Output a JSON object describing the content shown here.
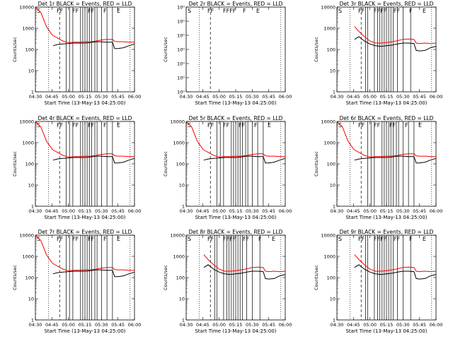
{
  "figure": {
    "xlabel": "Start Time (13-May-13 04:25:00)"
  },
  "ticks": {
    "x": [
      "04:30",
      "04:45",
      "05:00",
      "05:15",
      "05:30",
      "05:45",
      "06:00"
    ],
    "y_log": [
      "1",
      "10",
      "100",
      "1000",
      "10000"
    ],
    "y_det2": [
      "10⁰",
      "10⁰",
      "10⁰",
      "10⁰",
      "10⁰",
      "10⁰",
      "10⁰"
    ]
  },
  "colors": {
    "events": "#000000",
    "lld": "#ff0000",
    "axes": "#000000"
  },
  "chart_data": [
    {
      "type": "line",
      "title": "Det 1r BLACK = Events, RED = LLD",
      "ylabel": "Counts/sec",
      "yscale": "log",
      "ylim": [
        1,
        10000
      ],
      "xlim": [
        "04:30",
        "06:00"
      ],
      "x": [
        "04:30",
        "04:35",
        "04:40",
        "04:44",
        "04:46",
        "04:50",
        "04:55",
        "05:00",
        "05:05",
        "05:10",
        "05:15",
        "05:20",
        "05:25",
        "05:30",
        "05:35",
        "05:40",
        "05:42",
        "05:45",
        "05:50",
        "05:55",
        "06:00"
      ],
      "series": [
        {
          "name": "BLACK = Events",
          "color": "#000000",
          "values": [
            null,
            null,
            null,
            null,
            150,
            170,
            180,
            190,
            200,
            200,
            200,
            210,
            230,
            230,
            220,
            220,
            110,
            110,
            120,
            150,
            180
          ]
        },
        {
          "name": "RED = LLD",
          "color": "#ff0000",
          "values": [
            10000,
            5500,
            1200,
            600,
            450,
            350,
            250,
            210,
            220,
            220,
            230,
            230,
            250,
            280,
            300,
            300,
            240,
            230,
            230,
            220,
            220
          ]
        }
      ],
      "flags": [
        "S",
        "FF",
        "FF",
        "FF",
        "F",
        "E"
      ]
    },
    {
      "type": "line",
      "title": "Det 2r BLACK = Events, RED = LLD",
      "ylabel": "Counts/sec",
      "yscale": "linear",
      "ylim": [
        0,
        1
      ],
      "xlim": [
        "04:30",
        "06:00"
      ],
      "x": [],
      "series": [],
      "flags": [
        "S",
        "FF",
        "FFFF",
        "F",
        "E"
      ]
    },
    {
      "type": "line",
      "title": "Det 3r BLACK = Events, RED = LLD",
      "ylabel": "Counts/sec",
      "yscale": "log",
      "ylim": [
        1,
        10000
      ],
      "xlim": [
        "04:30",
        "06:00"
      ],
      "x": [
        "04:30",
        "04:35",
        "04:40",
        "04:44",
        "04:46",
        "04:50",
        "04:55",
        "05:00",
        "05:05",
        "05:10",
        "05:15",
        "05:20",
        "05:25",
        "05:30",
        "05:35",
        "05:40",
        "05:42",
        "05:45",
        "05:50",
        "05:55",
        "06:00"
      ],
      "series": [
        {
          "name": "BLACK = Events",
          "color": "#000000",
          "values": [
            null,
            null,
            null,
            null,
            300,
            400,
            250,
            180,
            150,
            140,
            150,
            160,
            180,
            200,
            200,
            190,
            90,
            85,
            90,
            120,
            140
          ]
        },
        {
          "name": "RED = LLD",
          "color": "#ff0000",
          "values": [
            null,
            null,
            null,
            null,
            1200,
            700,
            400,
            250,
            200,
            200,
            210,
            230,
            260,
            300,
            310,
            300,
            200,
            190,
            200,
            190,
            200
          ]
        }
      ],
      "flags": [
        "S",
        "FF",
        "FFFF",
        "FF",
        "F",
        "E"
      ]
    },
    {
      "type": "line",
      "title": "Det 4r BLACK = Events, RED = LLD",
      "ylabel": "Counts/sec",
      "yscale": "log",
      "ylim": [
        1,
        10000
      ],
      "xlim": [
        "04:30",
        "06:00"
      ],
      "x": [
        "04:30",
        "04:35",
        "04:40",
        "04:44",
        "04:46",
        "04:50",
        "04:55",
        "05:00",
        "05:05",
        "05:10",
        "05:15",
        "05:20",
        "05:25",
        "05:30",
        "05:35",
        "05:40",
        "05:42",
        "05:45",
        "05:50",
        "05:55",
        "06:00"
      ],
      "series": [
        {
          "name": "BLACK = Events",
          "color": "#000000",
          "values": [
            null,
            null,
            null,
            null,
            150,
            170,
            180,
            190,
            200,
            200,
            200,
            210,
            230,
            230,
            220,
            220,
            110,
            110,
            120,
            150,
            180
          ]
        },
        {
          "name": "RED = LLD",
          "color": "#ff0000",
          "values": [
            10000,
            5500,
            1200,
            600,
            450,
            350,
            250,
            210,
            220,
            220,
            230,
            230,
            250,
            280,
            300,
            300,
            240,
            230,
            230,
            220,
            220
          ]
        }
      ],
      "flags": [
        "S",
        "FF",
        "FF",
        "FF",
        "F",
        "E"
      ]
    },
    {
      "type": "line",
      "title": "Det 5r BLACK = Events, RED = LLD",
      "ylabel": "Counts/sec",
      "yscale": "log",
      "ylim": [
        1,
        10000
      ],
      "xlim": [
        "04:30",
        "06:00"
      ],
      "x": [
        "04:30",
        "04:35",
        "04:40",
        "04:44",
        "04:46",
        "04:50",
        "04:55",
        "05:00",
        "05:05",
        "05:10",
        "05:15",
        "05:20",
        "05:25",
        "05:30",
        "05:35",
        "05:40",
        "05:42",
        "05:45",
        "05:50",
        "05:55",
        "06:00"
      ],
      "series": [
        {
          "name": "BLACK = Events",
          "color": "#000000",
          "values": [
            null,
            null,
            null,
            null,
            150,
            170,
            180,
            190,
            200,
            200,
            200,
            210,
            230,
            230,
            220,
            220,
            110,
            110,
            120,
            150,
            180
          ]
        },
        {
          "name": "RED = LLD",
          "color": "#ff0000",
          "values": [
            10000,
            5500,
            1200,
            600,
            450,
            350,
            250,
            210,
            220,
            220,
            230,
            230,
            250,
            280,
            300,
            300,
            240,
            230,
            230,
            220,
            220
          ]
        }
      ],
      "flags": [
        "S",
        "FF",
        "FF",
        "FF",
        "F",
        "E"
      ]
    },
    {
      "type": "line",
      "title": "Det 6r BLACK = Events, RED = LLD",
      "ylabel": "Counts/sec",
      "yscale": "log",
      "ylim": [
        1,
        10000
      ],
      "xlim": [
        "04:30",
        "06:00"
      ],
      "x": [
        "04:30",
        "04:35",
        "04:40",
        "04:44",
        "04:46",
        "04:50",
        "04:55",
        "05:00",
        "05:05",
        "05:10",
        "05:15",
        "05:20",
        "05:25",
        "05:30",
        "05:35",
        "05:40",
        "05:42",
        "05:45",
        "05:50",
        "05:55",
        "06:00"
      ],
      "series": [
        {
          "name": "BLACK = Events",
          "color": "#000000",
          "values": [
            null,
            null,
            null,
            null,
            150,
            170,
            180,
            190,
            200,
            200,
            200,
            210,
            230,
            230,
            220,
            220,
            110,
            110,
            120,
            150,
            180
          ]
        },
        {
          "name": "RED = LLD",
          "color": "#ff0000",
          "values": [
            10000,
            5500,
            1200,
            600,
            450,
            350,
            250,
            210,
            220,
            220,
            230,
            230,
            250,
            280,
            300,
            300,
            240,
            230,
            230,
            220,
            220
          ]
        }
      ],
      "flags": [
        "S",
        "FF",
        "FF",
        "FF",
        "F",
        "E"
      ]
    },
    {
      "type": "line",
      "title": "Det 7r BLACK = Events, RED = LLD",
      "ylabel": "Counts/sec",
      "yscale": "log",
      "ylim": [
        1,
        10000
      ],
      "xlim": [
        "04:30",
        "06:00"
      ],
      "x": [
        "04:30",
        "04:35",
        "04:40",
        "04:44",
        "04:46",
        "04:50",
        "04:55",
        "05:00",
        "05:05",
        "05:10",
        "05:15",
        "05:20",
        "05:25",
        "05:30",
        "05:35",
        "05:40",
        "05:42",
        "05:45",
        "05:50",
        "05:55",
        "06:00"
      ],
      "series": [
        {
          "name": "BLACK = Events",
          "color": "#000000",
          "values": [
            null,
            null,
            null,
            null,
            150,
            170,
            180,
            190,
            200,
            200,
            200,
            210,
            230,
            230,
            220,
            220,
            110,
            110,
            120,
            150,
            180
          ]
        },
        {
          "name": "RED = LLD",
          "color": "#ff0000",
          "values": [
            10000,
            5500,
            1200,
            600,
            450,
            350,
            250,
            210,
            220,
            220,
            230,
            230,
            250,
            280,
            300,
            300,
            240,
            230,
            230,
            220,
            220
          ]
        }
      ],
      "flags": [
        "S",
        "FF",
        "FF",
        "FF",
        "F",
        "E"
      ]
    },
    {
      "type": "line",
      "title": "Det 8r BLACK = Events, RED = LLD",
      "ylabel": "Counts/sec",
      "yscale": "log",
      "ylim": [
        1,
        10000
      ],
      "xlim": [
        "04:30",
        "06:00"
      ],
      "x": [
        "04:30",
        "04:35",
        "04:40",
        "04:44",
        "04:46",
        "04:50",
        "04:55",
        "05:00",
        "05:05",
        "05:10",
        "05:15",
        "05:20",
        "05:25",
        "05:30",
        "05:35",
        "05:40",
        "05:42",
        "05:45",
        "05:50",
        "05:55",
        "06:00"
      ],
      "series": [
        {
          "name": "BLACK = Events",
          "color": "#000000",
          "values": [
            null,
            null,
            null,
            null,
            300,
            400,
            250,
            180,
            150,
            140,
            150,
            160,
            180,
            200,
            200,
            190,
            90,
            85,
            90,
            120,
            140
          ]
        },
        {
          "name": "RED = LLD",
          "color": "#ff0000",
          "values": [
            null,
            null,
            null,
            null,
            1200,
            700,
            400,
            250,
            200,
            200,
            210,
            230,
            260,
            300,
            310,
            300,
            200,
            190,
            200,
            190,
            200
          ]
        }
      ],
      "flags": [
        "S",
        "FF",
        "FFFF",
        "FF",
        "F",
        "E"
      ]
    },
    {
      "type": "line",
      "title": "Det 9r BLACK = Events, RED = LLD",
      "ylabel": "Counts/sec",
      "yscale": "log",
      "ylim": [
        1,
        10000
      ],
      "xlim": [
        "04:30",
        "06:00"
      ],
      "x": [
        "04:30",
        "04:35",
        "04:40",
        "04:44",
        "04:46",
        "04:50",
        "04:55",
        "05:00",
        "05:05",
        "05:10",
        "05:15",
        "05:20",
        "05:25",
        "05:30",
        "05:35",
        "05:40",
        "05:42",
        "05:45",
        "05:50",
        "05:55",
        "06:00"
      ],
      "series": [
        {
          "name": "BLACK = Events",
          "color": "#000000",
          "values": [
            null,
            null,
            null,
            null,
            300,
            400,
            250,
            180,
            150,
            140,
            150,
            160,
            180,
            200,
            200,
            190,
            90,
            85,
            90,
            120,
            140
          ]
        },
        {
          "name": "RED = LLD",
          "color": "#ff0000",
          "values": [
            null,
            null,
            null,
            null,
            1200,
            700,
            400,
            250,
            200,
            200,
            210,
            230,
            260,
            300,
            310,
            300,
            200,
            190,
            200,
            190,
            200
          ]
        }
      ],
      "flags": [
        "S",
        "FF",
        "FFFF",
        "FF",
        "F",
        "E"
      ]
    }
  ]
}
